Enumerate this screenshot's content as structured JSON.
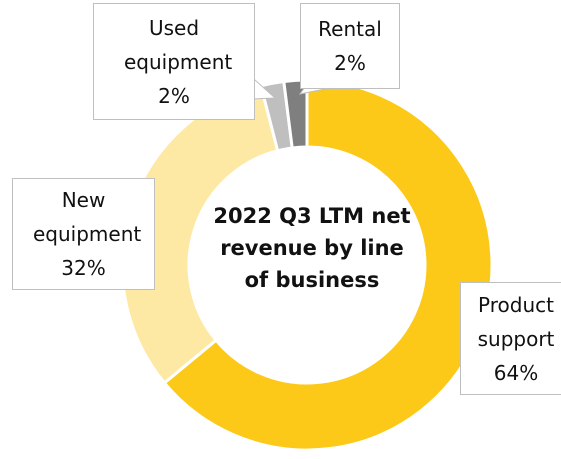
{
  "chart_data": {
    "type": "donut",
    "title": "2022 Q3 LTM net revenue by line of business",
    "categories": [
      "Product support",
      "New equipment",
      "Used equipment",
      "Rental"
    ],
    "values": [
      64,
      32,
      2,
      2
    ],
    "value_labels": [
      "64%",
      "32%",
      "2%",
      "2%"
    ],
    "colors": [
      "#fcc918",
      "#fde9a4",
      "#bfbfbf",
      "#7f7f7f"
    ]
  }
}
